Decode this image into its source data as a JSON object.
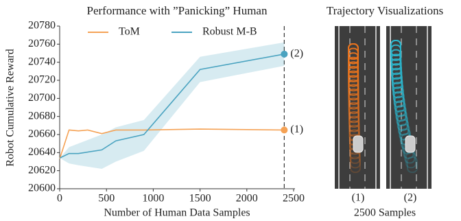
{
  "chart_data": {
    "type": "line",
    "title": "Performance with ”Panicking” Human",
    "x_label": "Number of Human Data Samples",
    "y_label": "Robot Cumulative Reward",
    "legend": "upper center",
    "series": [
      {
        "name": "ToM",
        "color": "#f5a255",
        "x": [
          0,
          100,
          200,
          300,
          450,
          600,
          900,
          1500,
          2400
        ],
        "values": [
          20633,
          20665,
          20664,
          20665,
          20661,
          20665,
          20665,
          20666,
          20665
        ]
      },
      {
        "name": "Robust M-B",
        "color": "#4aa3c0",
        "x": [
          0,
          100,
          200,
          450,
          600,
          900,
          1500,
          2400
        ],
        "values": [
          20634,
          20639,
          20639,
          20643,
          20653,
          20660,
          20732,
          20749
        ],
        "band_lower": [
          20634,
          20628,
          20626,
          20622,
          20630,
          20642,
          20718,
          20736
        ],
        "band_upper": [
          20634,
          20646,
          20650,
          20660,
          20668,
          20676,
          20746,
          20762
        ]
      }
    ],
    "annotations": [
      "(1)",
      "(2)"
    ],
    "marker_x": 2400,
    "xlim": [
      0,
      2500
    ],
    "ylim": [
      20600,
      20780
    ],
    "xticks": [
      0,
      500,
      1000,
      1500,
      2000,
      2500
    ],
    "yticks": [
      20600,
      20620,
      20640,
      20660,
      20680,
      20700,
      20720,
      20740,
      20760,
      20780
    ]
  },
  "trajectory_panel": {
    "title": "Trajectory Visualizations",
    "labels": [
      "(1)",
      "(2)"
    ],
    "caption": "2500 Samples"
  }
}
